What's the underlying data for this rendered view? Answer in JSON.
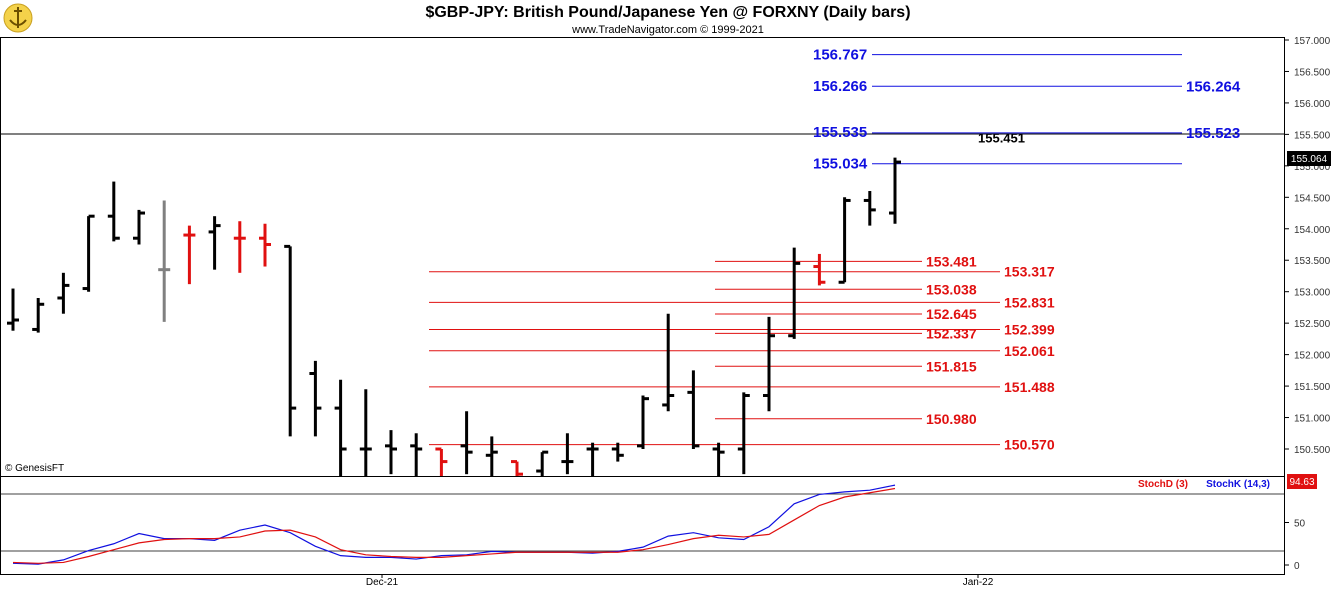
{
  "header": {
    "title": "$GBP-JPY:  British Pound/Japanese Yen @ FORXNY  (Daily bars)",
    "subtitle": "www.TradeNavigator.com © 1999-2021"
  },
  "watermark": "© GenesisFT",
  "colors": {
    "up": "#000000",
    "down": "#e01010",
    "neutral": "#808080",
    "blue": "#1010e0",
    "stochK": "#1010e0",
    "stochD": "#e01010"
  },
  "chart_data": [
    {
      "type": "ohlc",
      "title": "$GBP-JPY:  British Pound/Japanese Yen @ FORXNY  (Daily bars)",
      "ylim": [
        150.1,
        157.1
      ],
      "y_ticks": [
        "157.000",
        "156.500",
        "156.000",
        "155.500",
        "155.000",
        "154.500",
        "154.000",
        "153.500",
        "153.000",
        "152.500",
        "152.000",
        "151.500",
        "151.000",
        "150.500"
      ],
      "y_tick_values": [
        157.0,
        156.5,
        156.0,
        155.5,
        155.0,
        154.5,
        154.0,
        153.5,
        153.0,
        152.5,
        152.0,
        151.5,
        151.0,
        150.5
      ],
      "last_price": "155.064",
      "x_labels": [
        "Dec-21",
        "Jan-22"
      ],
      "bars": [
        {
          "o": 152.5,
          "h": 153.05,
          "l": 152.38,
          "c": 152.55,
          "color": "up"
        },
        {
          "o": 152.4,
          "h": 152.9,
          "l": 152.35,
          "c": 152.8,
          "color": "up"
        },
        {
          "o": 152.9,
          "h": 153.3,
          "l": 152.65,
          "c": 153.1,
          "color": "up"
        },
        {
          "o": 153.05,
          "h": 154.2,
          "l": 153.0,
          "c": 154.2,
          "color": "up"
        },
        {
          "o": 154.2,
          "h": 154.75,
          "l": 153.8,
          "c": 153.85,
          "color": "up"
        },
        {
          "o": 153.85,
          "h": 154.3,
          "l": 153.75,
          "c": 154.25,
          "color": "up"
        },
        {
          "o": 153.35,
          "h": 154.45,
          "l": 152.52,
          "c": 153.35,
          "color": "neutral"
        },
        {
          "o": 153.9,
          "h": 154.05,
          "l": 153.12,
          "c": 153.9,
          "color": "down"
        },
        {
          "o": 153.95,
          "h": 154.2,
          "l": 153.35,
          "c": 154.05,
          "color": "up"
        },
        {
          "o": 153.85,
          "h": 154.12,
          "l": 153.3,
          "c": 153.85,
          "color": "down"
        },
        {
          "o": 153.85,
          "h": 154.08,
          "l": 153.4,
          "c": 153.75,
          "color": "down"
        },
        {
          "o": 153.72,
          "h": 153.72,
          "l": 150.7,
          "c": 151.15,
          "color": "up"
        },
        {
          "o": 151.7,
          "h": 151.9,
          "l": 150.7,
          "c": 151.15,
          "color": "up"
        },
        {
          "o": 151.15,
          "h": 151.6,
          "l": 150.0,
          "c": 150.5,
          "color": "up"
        },
        {
          "o": 150.5,
          "h": 151.45,
          "l": 150.0,
          "c": 150.5,
          "color": "up"
        },
        {
          "o": 150.55,
          "h": 150.8,
          "l": 150.1,
          "c": 150.5,
          "color": "up"
        },
        {
          "o": 150.55,
          "h": 150.75,
          "l": 150.0,
          "c": 150.5,
          "color": "up"
        },
        {
          "o": 150.5,
          "h": 150.5,
          "l": 150.0,
          "c": 150.3,
          "color": "down"
        },
        {
          "o": 150.55,
          "h": 151.1,
          "l": 150.1,
          "c": 150.45,
          "color": "up"
        },
        {
          "o": 150.4,
          "h": 150.7,
          "l": 150.0,
          "c": 150.45,
          "color": "up"
        },
        {
          "o": 150.3,
          "h": 150.3,
          "l": 150.0,
          "c": 150.1,
          "color": "down"
        },
        {
          "o": 150.15,
          "h": 150.45,
          "l": 150.0,
          "c": 150.45,
          "color": "up"
        },
        {
          "o": 150.3,
          "h": 150.75,
          "l": 150.1,
          "c": 150.3,
          "color": "up"
        },
        {
          "o": 150.5,
          "h": 150.6,
          "l": 150.0,
          "c": 150.5,
          "color": "up"
        },
        {
          "o": 150.5,
          "h": 150.6,
          "l": 150.3,
          "c": 150.4,
          "color": "up"
        },
        {
          "o": 150.55,
          "h": 151.35,
          "l": 150.5,
          "c": 151.3,
          "color": "up"
        },
        {
          "o": 151.2,
          "h": 152.65,
          "l": 151.1,
          "c": 151.35,
          "color": "up"
        },
        {
          "o": 151.4,
          "h": 151.75,
          "l": 150.5,
          "c": 150.55,
          "color": "up"
        },
        {
          "o": 150.5,
          "h": 150.6,
          "l": 150.05,
          "c": 150.45,
          "color": "up"
        },
        {
          "o": 150.5,
          "h": 151.4,
          "l": 150.1,
          "c": 151.35,
          "color": "up"
        },
        {
          "o": 151.35,
          "h": 152.6,
          "l": 151.1,
          "c": 152.3,
          "color": "up"
        },
        {
          "o": 152.3,
          "h": 153.7,
          "l": 152.25,
          "c": 153.45,
          "color": "up"
        },
        {
          "o": 153.4,
          "h": 153.6,
          "l": 153.1,
          "c": 153.15,
          "color": "down"
        },
        {
          "o": 153.15,
          "h": 154.5,
          "l": 153.15,
          "c": 154.45,
          "color": "up"
        },
        {
          "o": 154.45,
          "h": 154.6,
          "l": 154.05,
          "c": 154.3,
          "color": "up"
        },
        {
          "o": 154.25,
          "h": 155.13,
          "l": 154.08,
          "c": 155.06,
          "color": "up"
        }
      ],
      "levels_red": [
        {
          "value": 153.481,
          "label": "153.481"
        },
        {
          "value": 153.317,
          "label": "153.317"
        },
        {
          "value": 153.038,
          "label": "153.038"
        },
        {
          "value": 152.831,
          "label": "152.831"
        },
        {
          "value": 152.645,
          "label": "152.645"
        },
        {
          "value": 152.399,
          "label": "152.399"
        },
        {
          "value": 152.337,
          "label": "152.337"
        },
        {
          "value": 152.061,
          "label": "152.061"
        },
        {
          "value": 151.815,
          "label": "151.815"
        },
        {
          "value": 151.488,
          "label": "151.488"
        },
        {
          "value": 150.98,
          "label": "150.980"
        },
        {
          "value": 150.57,
          "label": "150.570"
        }
      ],
      "levels_blue": [
        {
          "value": 156.767,
          "label": "156.767"
        },
        {
          "value": 156.264,
          "label": "156.264"
        },
        {
          "value": 156.266,
          "label": "156.266"
        },
        {
          "value": 155.523,
          "label": "155.523"
        },
        {
          "value": 155.535,
          "label": "155.535"
        },
        {
          "value": 155.034,
          "label": "155.034"
        }
      ],
      "level_black": {
        "value": 155.451,
        "label": "155.451"
      }
    },
    {
      "type": "line",
      "ylim": [
        0,
        100
      ],
      "y_ticks": [
        "50",
        "0"
      ],
      "y_tick_values": [
        50,
        0
      ],
      "last_value": "94.63",
      "series": [
        {
          "name": "StochK (14,3)",
          "color": "#1010e0",
          "values": [
            2,
            1,
            6,
            17,
            25,
            37,
            31,
            31,
            29,
            41,
            47,
            38,
            22,
            11,
            9,
            9,
            7,
            11,
            12,
            16,
            15,
            15,
            15,
            14,
            16,
            21,
            34,
            38,
            32,
            30,
            45,
            72,
            83,
            86,
            88,
            94
          ]
        },
        {
          "name": "StochD (3)",
          "color": "#e01010",
          "values": [
            3,
            2,
            3,
            10,
            18,
            26,
            30,
            31,
            31,
            33,
            40,
            41,
            33,
            18,
            12,
            10,
            9,
            9,
            11,
            13,
            15,
            15,
            15,
            15,
            15,
            18,
            24,
            31,
            35,
            33,
            36,
            53,
            70,
            80,
            85,
            90
          ]
        }
      ]
    }
  ]
}
